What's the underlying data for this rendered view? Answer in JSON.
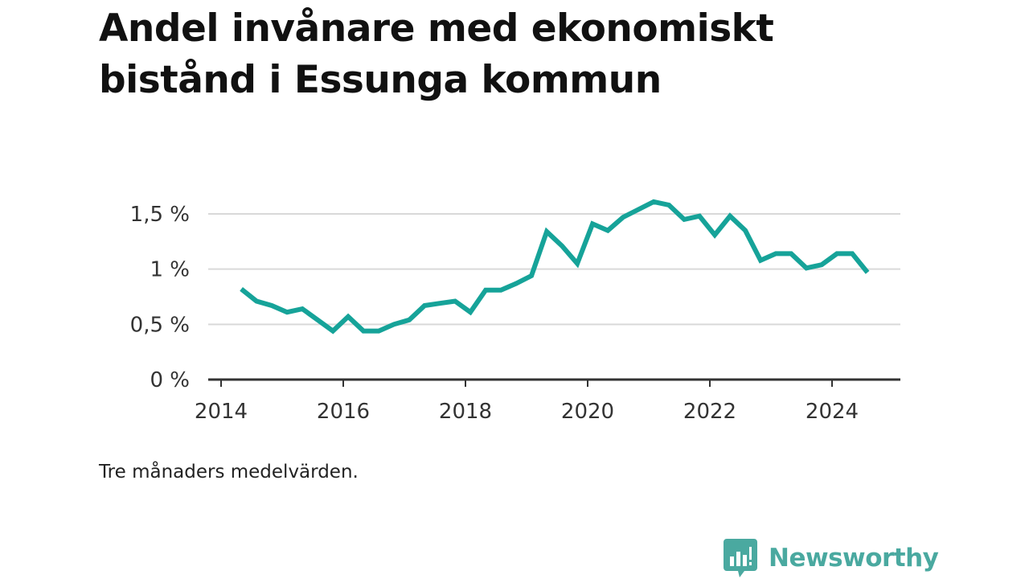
{
  "title": "Andel invånare med ekonomiskt bistånd i Essunga kommun",
  "footnote": "Tre månaders medelvärden.",
  "brand": {
    "name": "Newsworthy",
    "color": "#4aa9a0"
  },
  "colors": {
    "line": "#16a399",
    "grid": "#d9d9d9",
    "axis": "#333333"
  },
  "chart_data": {
    "type": "line",
    "title": "Andel invånare med ekonomiskt bistånd i Essunga kommun",
    "xlabel": "",
    "ylabel": "",
    "xlim": [
      2014,
      2025.2
    ],
    "ylim": [
      0,
      1.5
    ],
    "grid": true,
    "legend": "none",
    "x_ticks": [
      2014,
      2016,
      2018,
      2020,
      2022,
      2024
    ],
    "x_tick_labels": [
      "2014",
      "2016",
      "2018",
      "2020",
      "2022",
      "2024"
    ],
    "y_ticks": [
      0,
      0.5,
      1,
      1.5
    ],
    "y_tick_labels": [
      "0 %",
      "0,5 %",
      "1 %",
      "1,5 %"
    ],
    "series": [
      {
        "x": [
          2014.33,
          2014.58,
          2014.83,
          2015.08,
          2015.33,
          2015.58,
          2015.83,
          2016.08,
          2016.33,
          2016.58,
          2016.83,
          2017.08,
          2017.33,
          2017.58,
          2017.83,
          2018.08,
          2018.33,
          2018.58,
          2018.83,
          2019.08,
          2019.33,
          2019.58,
          2019.83,
          2020.08,
          2020.33,
          2020.58,
          2020.83,
          2021.08,
          2021.33,
          2021.58,
          2021.83,
          2022.08,
          2022.33,
          2022.58,
          2022.83,
          2023.08,
          2023.33,
          2023.58,
          2023.83,
          2024.08,
          2024.33,
          2024.58
        ],
        "values": [
          0.82,
          0.71,
          0.67,
          0.61,
          0.64,
          0.54,
          0.44,
          0.57,
          0.44,
          0.44,
          0.5,
          0.54,
          0.67,
          0.69,
          0.71,
          0.61,
          0.81,
          0.81,
          0.87,
          0.94,
          1.34,
          1.21,
          1.05,
          1.41,
          1.35,
          1.47,
          1.54,
          1.61,
          1.58,
          1.45,
          1.48,
          1.31,
          1.48,
          1.35,
          1.08,
          1.14,
          1.14,
          1.01,
          1.04,
          1.14,
          1.14,
          0.97
        ]
      }
    ]
  }
}
